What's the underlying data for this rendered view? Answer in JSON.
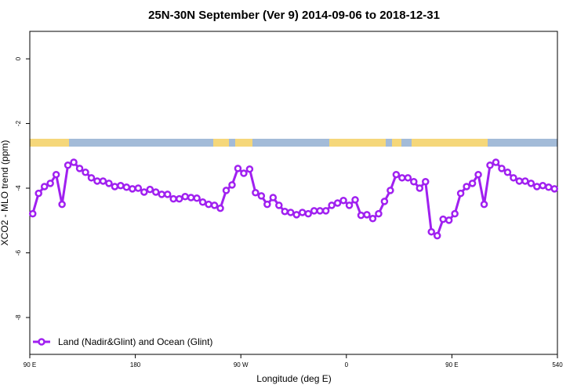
{
  "chart_data": {
    "type": "line",
    "title": "25N-30N September (Ver 9)   2014-09-06 to 2018-12-31",
    "x_label": "Longitude (deg E)",
    "y_label": "XCO2 - MLO trend (ppm)",
    "xlim": [
      90,
      540
    ],
    "ylim": [
      -9.14,
      0.85
    ],
    "xticks": [
      {
        "value": 90,
        "label": "90 E"
      },
      180,
      {
        "value": 270,
        "label": "90 W"
      },
      {
        "value": 360,
        "label": "0"
      },
      {
        "value": 450,
        "label": "90 E"
      },
      540
    ],
    "yticks": [
      0,
      -2,
      -4,
      -6,
      -8
    ],
    "legend": "bottom-left",
    "x": [
      92.5,
      97.5,
      102.5,
      107.5,
      112.5,
      117.5,
      122.5,
      127.5,
      132.5,
      137.5,
      142.5,
      147.5,
      152.5,
      157.5,
      162.5,
      167.5,
      172.5,
      177.5,
      182.5,
      187.5,
      192.5,
      197.5,
      202.5,
      207.5,
      212.5,
      217.5,
      222.5,
      227.5,
      232.5,
      237.5,
      242.5,
      247.5,
      252.5,
      257.5,
      262.5,
      267.5,
      272.5,
      277.5,
      282.5,
      287.5,
      292.5,
      297.5,
      302.5,
      307.5,
      312.5,
      317.5,
      322.5,
      327.5,
      332.5,
      337.5,
      342.5,
      347.5,
      352.5,
      357.5,
      362.5,
      367.5,
      372.5,
      377.5,
      382.5,
      387.5,
      392.5,
      397.5,
      402.5,
      407.5,
      412.5,
      417.5,
      422.5,
      427.5,
      432.5,
      437.5,
      442.5,
      447.5,
      452.5,
      457.5,
      462.5,
      467.5,
      472.5,
      477.5,
      482.5,
      487.5,
      492.5,
      497.5,
      502.5,
      507.5,
      512.5,
      517.5,
      522.5,
      527.5,
      532.5,
      537.5
    ],
    "series": [
      {
        "name": "Land (Nadir&Glint) and Ocean (Glint)",
        "color": "#a020f0",
        "values": [
          -4.79,
          -4.16,
          -3.95,
          -3.85,
          -3.58,
          -4.5,
          -3.29,
          -3.2,
          -3.39,
          -3.51,
          -3.68,
          -3.78,
          -3.78,
          -3.85,
          -3.95,
          -3.92,
          -3.97,
          -4.02,
          -4.0,
          -4.12,
          -4.04,
          -4.12,
          -4.19,
          -4.19,
          -4.33,
          -4.33,
          -4.26,
          -4.29,
          -4.31,
          -4.43,
          -4.5,
          -4.53,
          -4.62,
          -4.07,
          -3.9,
          -3.39,
          -3.54,
          -3.41,
          -4.14,
          -4.24,
          -4.5,
          -4.29,
          -4.53,
          -4.72,
          -4.75,
          -4.82,
          -4.75,
          -4.79,
          -4.7,
          -4.7,
          -4.7,
          -4.53,
          -4.46,
          -4.38,
          -4.53,
          -4.36,
          -4.84,
          -4.82,
          -4.94,
          -4.79,
          -4.41,
          -4.07,
          -3.58,
          -3.68,
          -3.68,
          -3.8,
          -4.0,
          -3.8,
          -5.35,
          -5.47,
          -4.96,
          -4.99,
          -4.79,
          -4.16,
          -3.95,
          -3.85,
          -3.58,
          -4.5,
          -3.29,
          -3.2,
          -3.39,
          -3.51,
          -3.68,
          -3.78,
          -3.78,
          -3.85,
          -3.95,
          -3.92,
          -3.97,
          -4.02
        ]
      }
    ]
  }
}
